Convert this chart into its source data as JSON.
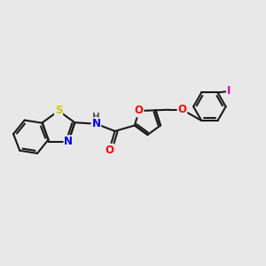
{
  "bg_color": "#e8e8e8",
  "bond_color": "#1a1a1a",
  "bond_width": 1.5,
  "atom_colors": {
    "S": "#cccc00",
    "N": "#0000ee",
    "O": "#ff0000",
    "I": "#cc00cc",
    "H": "#555555",
    "C": "#1a1a1a"
  },
  "font_size": 8.5,
  "fig_size": [
    3.0,
    3.0
  ]
}
